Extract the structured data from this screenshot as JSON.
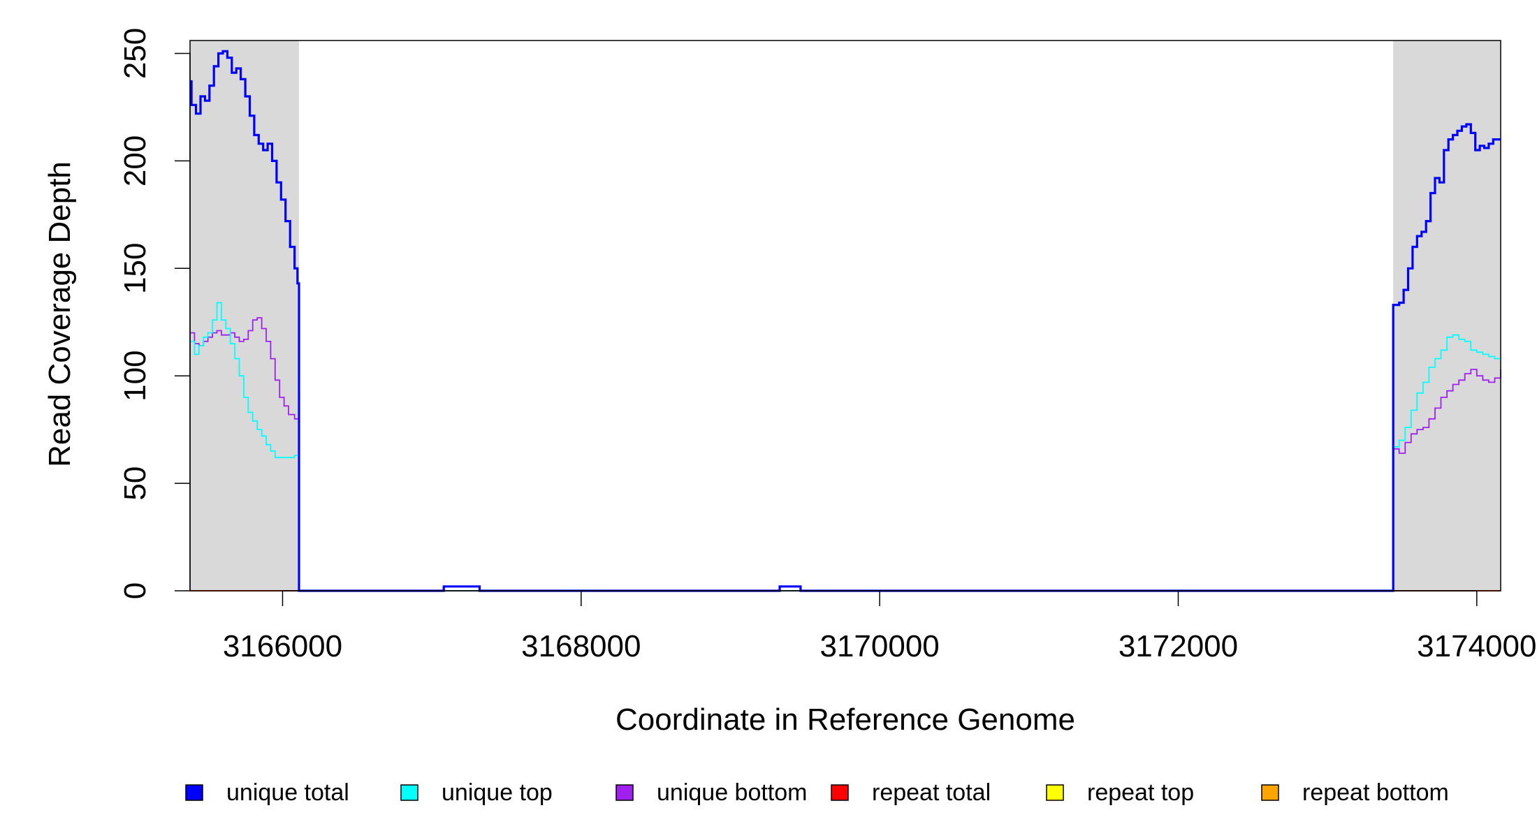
{
  "chart_data": {
    "type": "line",
    "title": "",
    "xlabel": "Coordinate in Reference Genome",
    "ylabel": "Read Coverage Depth",
    "xlim": [
      3165380,
      3174160
    ],
    "ylim": [
      0,
      256
    ],
    "x_ticks": [
      3166000,
      3168000,
      3170000,
      3172000,
      3174000
    ],
    "x_tick_labels": [
      "3166000",
      "3168000",
      "3170000",
      "3172000",
      "3174000"
    ],
    "y_ticks": [
      0,
      50,
      100,
      150,
      200,
      250
    ],
    "y_tick_labels": [
      "0",
      "50",
      "100",
      "150",
      "200",
      "250"
    ],
    "grid": false,
    "legend_position": "bottom",
    "shaded_regions": [
      {
        "x_start": 3165380,
        "x_end": 3166110,
        "color": "#d9d9d9"
      },
      {
        "x_start": 3173440,
        "x_end": 3174160,
        "color": "#d9d9d9"
      }
    ],
    "series": [
      {
        "name": "unique total",
        "color": "#0000ff",
        "segments": [
          [
            [
              3165380,
              237
            ],
            [
              3165390,
              226
            ],
            [
              3165420,
              222
            ],
            [
              3165450,
              230
            ],
            [
              3165480,
              228
            ],
            [
              3165510,
              235
            ],
            [
              3165540,
              244
            ],
            [
              3165570,
              250
            ],
            [
              3165600,
              251
            ],
            [
              3165630,
              248
            ],
            [
              3165660,
              241
            ],
            [
              3165690,
              243
            ],
            [
              3165720,
              238
            ],
            [
              3165750,
              230
            ],
            [
              3165780,
              221
            ],
            [
              3165810,
              212
            ],
            [
              3165840,
              208
            ],
            [
              3165870,
              205
            ],
            [
              3165900,
              208
            ],
            [
              3165930,
              200
            ],
            [
              3165960,
              190
            ],
            [
              3165990,
              182
            ],
            [
              3166020,
              172
            ],
            [
              3166050,
              160
            ],
            [
              3166080,
              150
            ],
            [
              3166100,
              143
            ],
            [
              3166110,
              142
            ],
            [
              3166110,
              0
            ],
            [
              3166110,
              0
            ],
            [
              3167080,
              0
            ],
            [
              3167080,
              2
            ],
            [
              3167320,
              2
            ],
            [
              3167320,
              0
            ],
            [
              3169330,
              0
            ],
            [
              3169330,
              2
            ],
            [
              3169470,
              2
            ],
            [
              3169470,
              0
            ],
            [
              3173440,
              0
            ],
            [
              3173440,
              133
            ],
            [
              3173480,
              134
            ],
            [
              3173510,
              140
            ],
            [
              3173540,
              150
            ],
            [
              3173570,
              160
            ],
            [
              3173600,
              165
            ],
            [
              3173630,
              167
            ],
            [
              3173660,
              172
            ],
            [
              3173690,
              185
            ],
            [
              3173720,
              192
            ],
            [
              3173750,
              190
            ],
            [
              3173780,
              205
            ],
            [
              3173810,
              210
            ],
            [
              3173840,
              212
            ],
            [
              3173870,
              214
            ],
            [
              3173900,
              216
            ],
            [
              3173930,
              217
            ],
            [
              3173960,
              213
            ],
            [
              3173990,
              205
            ],
            [
              3174020,
              207
            ],
            [
              3174050,
              206
            ],
            [
              3174080,
              208
            ],
            [
              3174110,
              210
            ],
            [
              3174160,
              210
            ]
          ]
        ]
      },
      {
        "name": "unique top",
        "color": "#00ffff",
        "segments": [
          [
            [
              3165380,
              116
            ],
            [
              3165410,
              110
            ],
            [
              3165440,
              114
            ],
            [
              3165470,
              118
            ],
            [
              3165500,
              120
            ],
            [
              3165530,
              126
            ],
            [
              3165560,
              134
            ],
            [
              3165590,
              126
            ],
            [
              3165620,
              122
            ],
            [
              3165650,
              115
            ],
            [
              3165680,
              108
            ],
            [
              3165710,
              100
            ],
            [
              3165740,
              90
            ],
            [
              3165770,
              83
            ],
            [
              3165800,
              79
            ],
            [
              3165830,
              75
            ],
            [
              3165860,
              72
            ],
            [
              3165890,
              68
            ],
            [
              3165920,
              65
            ],
            [
              3165950,
              62
            ],
            [
              3165980,
              62
            ],
            [
              3166010,
              62
            ],
            [
              3166040,
              62
            ],
            [
              3166080,
              63
            ],
            [
              3166110,
              64
            ],
            [
              3166110,
              0
            ],
            [
              3173440,
              0
            ],
            [
              3173440,
              67
            ],
            [
              3173480,
              70
            ],
            [
              3173520,
              76
            ],
            [
              3173560,
              84
            ],
            [
              3173600,
              92
            ],
            [
              3173640,
              97
            ],
            [
              3173680,
              104
            ],
            [
              3173720,
              108
            ],
            [
              3173760,
              112
            ],
            [
              3173800,
              118
            ],
            [
              3173840,
              119
            ],
            [
              3173880,
              117
            ],
            [
              3173920,
              116
            ],
            [
              3173960,
              112
            ],
            [
              3174000,
              111
            ],
            [
              3174040,
              110
            ],
            [
              3174080,
              109
            ],
            [
              3174120,
              108
            ],
            [
              3174160,
              108
            ]
          ]
        ]
      },
      {
        "name": "unique bottom",
        "color": "#a020f0",
        "segments": [
          [
            [
              3165380,
              120
            ],
            [
              3165410,
              115
            ],
            [
              3165440,
              114
            ],
            [
              3165470,
              116
            ],
            [
              3165500,
              118
            ],
            [
              3165530,
              120
            ],
            [
              3165560,
              121
            ],
            [
              3165590,
              119
            ],
            [
              3165620,
              119
            ],
            [
              3165650,
              120
            ],
            [
              3165680,
              118
            ],
            [
              3165710,
              116
            ],
            [
              3165740,
              117
            ],
            [
              3165770,
              121
            ],
            [
              3165800,
              126
            ],
            [
              3165830,
              127
            ],
            [
              3165860,
              122
            ],
            [
              3165890,
              116
            ],
            [
              3165920,
              108
            ],
            [
              3165950,
              98
            ],
            [
              3165980,
              90
            ],
            [
              3166010,
              86
            ],
            [
              3166040,
              82
            ],
            [
              3166080,
              80
            ],
            [
              3166110,
              79
            ],
            [
              3166110,
              0
            ],
            [
              3173440,
              0
            ],
            [
              3173440,
              66
            ],
            [
              3173480,
              64
            ],
            [
              3173520,
              69
            ],
            [
              3173560,
              73
            ],
            [
              3173600,
              75
            ],
            [
              3173640,
              76
            ],
            [
              3173680,
              80
            ],
            [
              3173720,
              85
            ],
            [
              3173760,
              90
            ],
            [
              3173800,
              93
            ],
            [
              3173840,
              96
            ],
            [
              3173880,
              98
            ],
            [
              3173920,
              101
            ],
            [
              3173960,
              103
            ],
            [
              3174000,
              100
            ],
            [
              3174040,
              98
            ],
            [
              3174080,
              97
            ],
            [
              3174120,
              99
            ],
            [
              3174160,
              103
            ]
          ]
        ]
      },
      {
        "name": "repeat total",
        "color": "#ff0000",
        "segments": [
          [
            [
              3165380,
              0
            ],
            [
              3174160,
              0
            ]
          ]
        ]
      },
      {
        "name": "repeat top",
        "color": "#ffff00",
        "segments": [
          [
            [
              3165380,
              0
            ],
            [
              3174160,
              0
            ]
          ]
        ]
      },
      {
        "name": "repeat bottom",
        "color": "#ffa500",
        "segments": [
          [
            [
              3165380,
              0
            ],
            [
              3174160,
              0
            ]
          ]
        ]
      }
    ],
    "legend": [
      {
        "label": "unique total",
        "color": "#0000ff"
      },
      {
        "label": "unique top",
        "color": "#00ffff"
      },
      {
        "label": "unique bottom",
        "color": "#a020f0"
      },
      {
        "label": "repeat total",
        "color": "#ff0000"
      },
      {
        "label": "repeat top",
        "color": "#ffff00"
      },
      {
        "label": "repeat bottom",
        "color": "#ffa500"
      }
    ]
  }
}
